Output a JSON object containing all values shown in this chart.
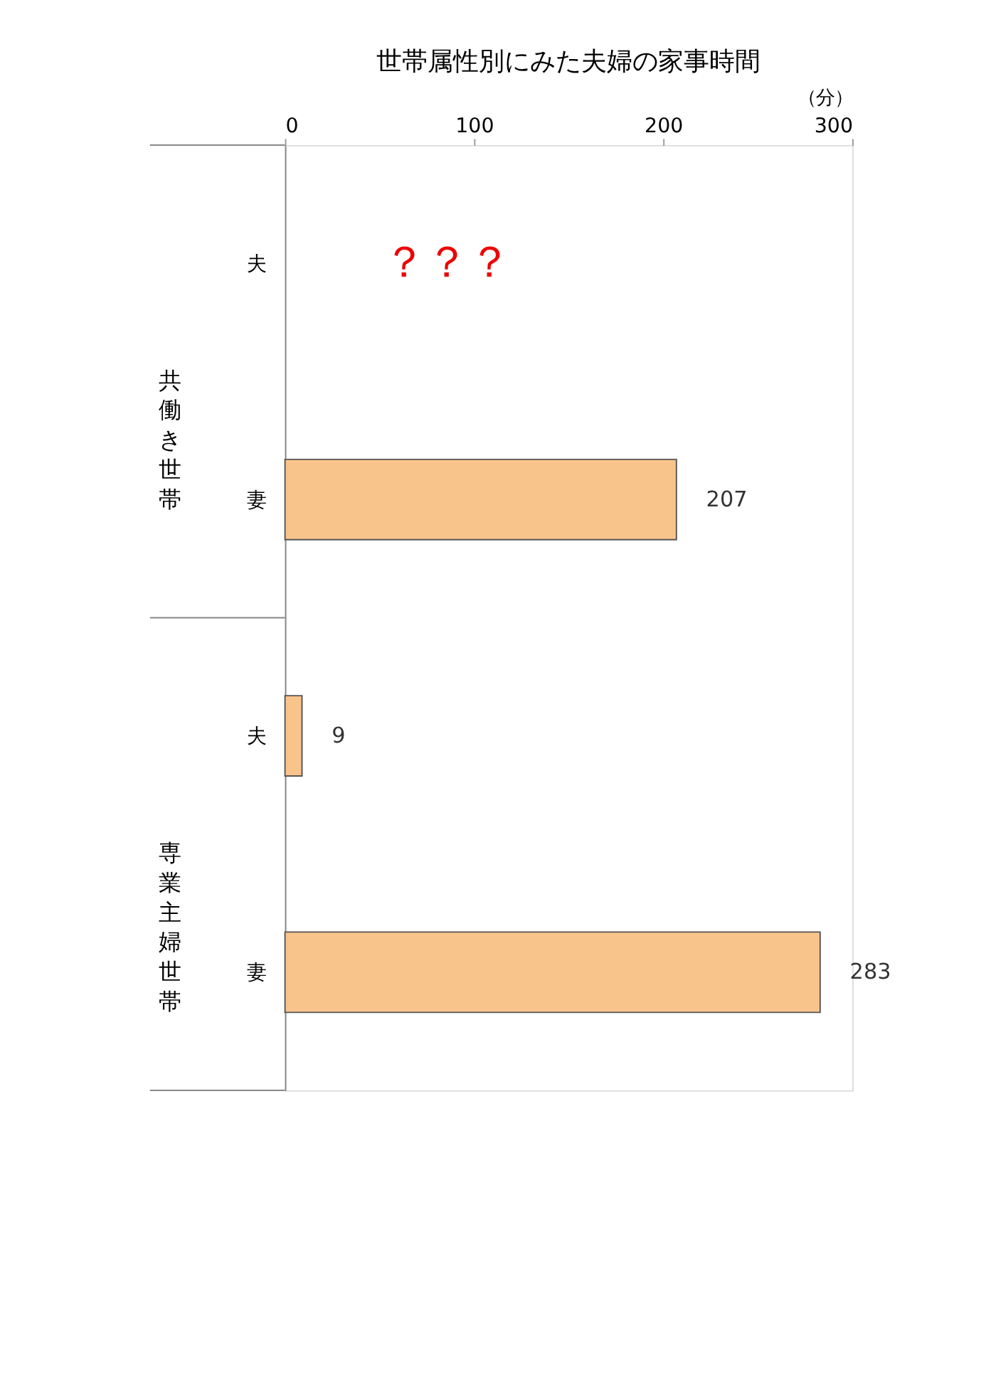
{
  "chart_data": {
    "type": "bar",
    "orientation": "horizontal",
    "title": "世帯属性別にみた夫婦の家事時間",
    "xlabel": "（分）",
    "categories": [
      "夫",
      "妻",
      "夫",
      "妻"
    ],
    "values": [
      null,
      207,
      9,
      283
    ],
    "color": "#f9c48c",
    "xlim": [
      0,
      300
    ],
    "xticks": [
      0,
      100,
      200,
      300
    ],
    "data_labels": true,
    "grid": false,
    "annotations": [
      "共働き世帯",
      "専業主婦世帯",
      "？？？"
    ]
  }
}
